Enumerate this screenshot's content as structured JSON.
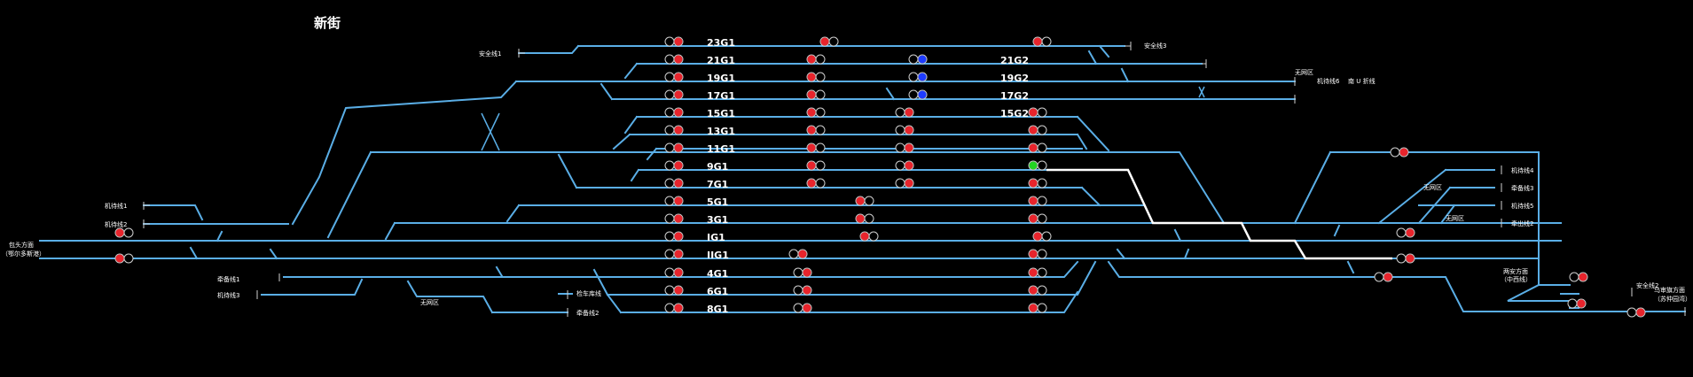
{
  "station_name": "新街",
  "colors": {
    "track": "#5aaee6",
    "route": "#ffffff",
    "red": "#e8242c",
    "blue": "#1e3cff",
    "green": "#22d322"
  },
  "tracks": [
    "23G1",
    "21G1",
    "19G1",
    "17G1",
    "15G1",
    "13G1",
    "11G1",
    "9G1",
    "7G1",
    "5G1",
    "3G1",
    "IG1",
    "IIG1",
    "4G1",
    "6G1",
    "8G1"
  ],
  "tracks_east": [
    "21G2",
    "19G2",
    "17G2",
    "15G2"
  ],
  "labels": {
    "safety1": "安全线1",
    "safety3": "安全线3",
    "safety2": "安全线2",
    "fwd1": "机待线1",
    "fwd2": "机待线2",
    "fwd3": "机待线3",
    "fwd4": "机待线4",
    "fwd5": "机待线5",
    "fwd6": "机待线6",
    "repair1": "牵备线1",
    "repair2": "牵备线2",
    "repair3": "牵备线3",
    "lead1": "牵出线1",
    "lead2": "牵出线2",
    "noline_a": "无网区",
    "noline_b": "无网区",
    "noline_c": "无网区",
    "noline_d": "无网区",
    "depot": "检车库线",
    "turn": "南 U 折线",
    "west_dir_1": "包头方面",
    "west_dir_2": "（鄂尔多斯港）",
    "east_dir_1": "乌审旗方面",
    "east_dir_2": "（苏仲园湾）",
    "mid_dir_1": "两安方面",
    "mid_dir_2": "（中西线）"
  }
}
